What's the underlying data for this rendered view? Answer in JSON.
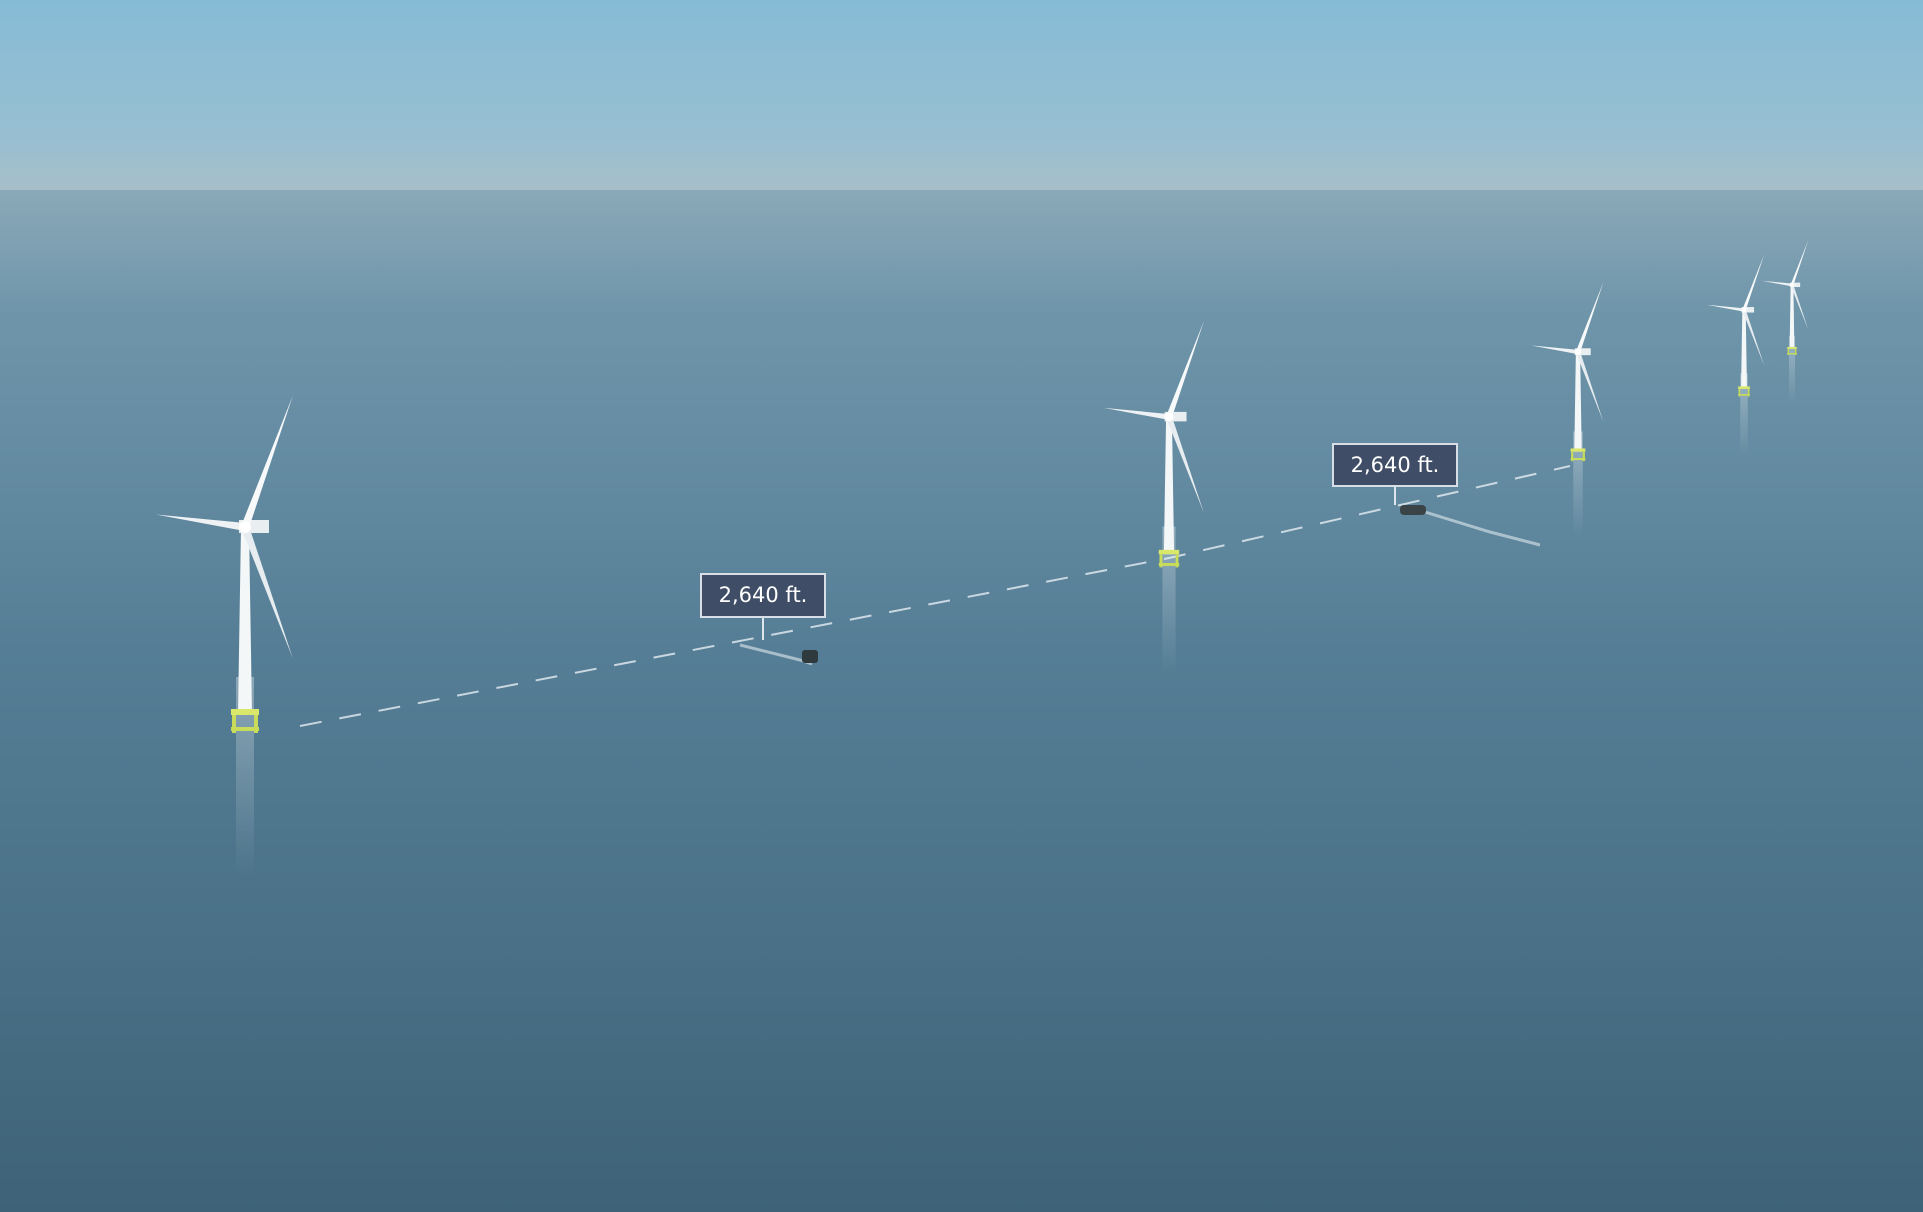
{
  "labels": [
    {
      "text": "2,640 ft."
    },
    {
      "text": "2,640 ft."
    }
  ]
}
